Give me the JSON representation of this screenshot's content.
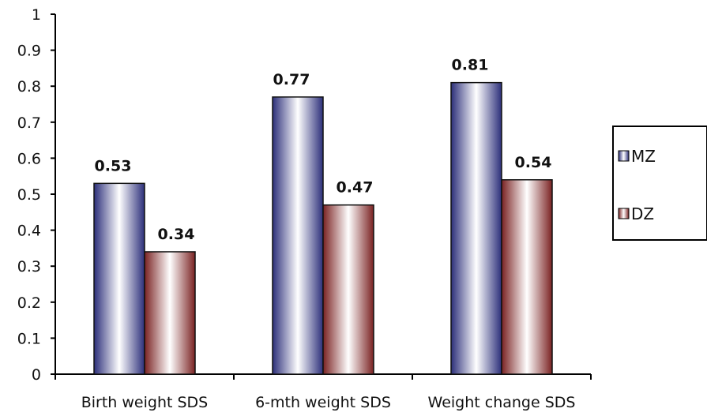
{
  "chart_data": {
    "type": "bar",
    "categories": [
      "Birth weight SDS",
      "6-mth weight SDS",
      "Weight change SDS"
    ],
    "series": [
      {
        "name": "MZ",
        "values": [
          0.53,
          0.77,
          0.81
        ],
        "color": "#3a3f8f"
      },
      {
        "name": "DZ",
        "values": [
          0.34,
          0.47,
          0.54
        ],
        "color": "#8a2c2c"
      }
    ],
    "data_labels": [
      [
        "0.53",
        "0.77",
        "0.81"
      ],
      [
        "0.34",
        "0.47",
        "0.54"
      ]
    ],
    "yticks": [
      "0",
      "0.1",
      "0.2",
      "0.3",
      "0.4",
      "0.5",
      "0.6",
      "0.7",
      "0.8",
      "0.9",
      "1"
    ],
    "ylim": [
      0,
      1
    ],
    "title": "",
    "xlabel": "",
    "ylabel": "",
    "grid": false,
    "legend_position": "right"
  }
}
